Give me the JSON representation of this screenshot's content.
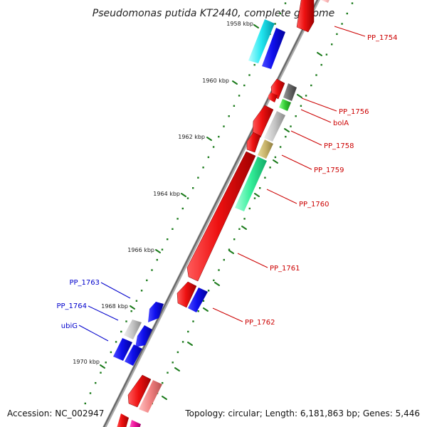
{
  "title": "Pseudomonas putida KT2440, complete genome",
  "ticks": [
    "1958 kbp",
    "1960 kbp",
    "1962 kbp",
    "1964 kbp",
    "1966 kbp",
    "1968 kbp",
    "1970 kbp"
  ],
  "labels": {
    "PP_1754": "PP_1754",
    "PP_1756": "PP_1756",
    "bolA": "bolA",
    "PP_1758": "PP_1758",
    "PP_1759": "PP_1759",
    "PP_1760": "PP_1760",
    "PP_1761": "PP_1761",
    "PP_1762": "PP_1762",
    "PP_1763": "PP_1763",
    "PP_1764": "PP_1764",
    "ubiG": "ubiG"
  },
  "colors": {
    "forward_label": "#cc0000",
    "reverse_label": "#0000cc",
    "backbone": "#777777",
    "ticks": "#1a7a1a"
  },
  "footer": {
    "accession": "Accession: NC_002947",
    "topology": "Topology: circular; Length: 6,181,863 bp; Genes: 5,446"
  }
}
